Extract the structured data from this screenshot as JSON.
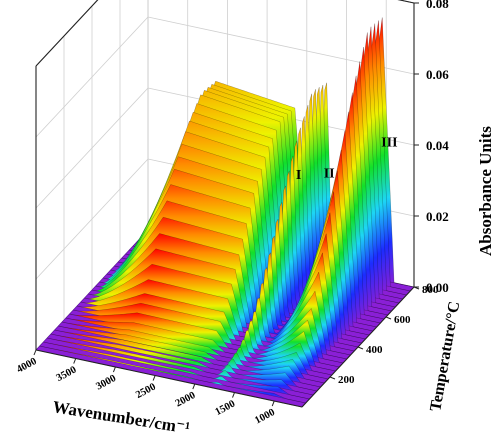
{
  "chart_data": {
    "type": "area",
    "style": "3d-waterfall-surface",
    "xlabel": "Wavenumber/cm⁻¹",
    "ylabel": "Temperature/°C",
    "zlabel": "Absorbance Units",
    "x_ticks": [
      "4000",
      "3500",
      "3000",
      "2500",
      "2000",
      "1500",
      "1000"
    ],
    "y_ticks": [
      "200",
      "400",
      "600",
      "800"
    ],
    "z_ticks": [
      "0.00",
      "0.02",
      "0.04",
      "0.06",
      "0.08"
    ],
    "xlim": [
      4000,
      650
    ],
    "ylim": [
      0,
      800
    ],
    "zlim": [
      0,
      0.08
    ],
    "grid": true,
    "colormap": [
      "#8a1fd6",
      "#1c2cff",
      "#1dd6f5",
      "#11e02a",
      "#eef200",
      "#ff8a00",
      "#ff0000"
    ],
    "peaks": [
      {
        "label": "I",
        "x_range": [
          3950,
          2000
        ],
        "center": 3200,
        "max_absorbance": 0.047
      },
      {
        "label": "II",
        "x_range": [
          1900,
          1650
        ],
        "center": 1760,
        "max_absorbance": 0.056
      },
      {
        "label": "III",
        "x_range": [
          1650,
          900
        ],
        "center": 1050,
        "max_absorbance": 0.075
      }
    ],
    "series": [
      {
        "temperature": 200,
        "values": [
          {
            "x": 3200,
            "y": 0.002
          },
          {
            "x": 1760,
            "y": 0.004
          },
          {
            "x": 1050,
            "y": 0.006
          }
        ]
      },
      {
        "temperature": 300,
        "values": [
          {
            "x": 3200,
            "y": 0.008
          },
          {
            "x": 1760,
            "y": 0.01
          },
          {
            "x": 1050,
            "y": 0.014
          }
        ]
      },
      {
        "temperature": 400,
        "values": [
          {
            "x": 3200,
            "y": 0.02
          },
          {
            "x": 1760,
            "y": 0.022
          },
          {
            "x": 1050,
            "y": 0.03
          }
        ]
      },
      {
        "temperature": 500,
        "values": [
          {
            "x": 3200,
            "y": 0.033
          },
          {
            "x": 1760,
            "y": 0.036
          },
          {
            "x": 1050,
            "y": 0.048
          }
        ]
      },
      {
        "temperature": 600,
        "values": [
          {
            "x": 3200,
            "y": 0.042
          },
          {
            "x": 1760,
            "y": 0.048
          },
          {
            "x": 1050,
            "y": 0.064
          }
        ]
      },
      {
        "temperature": 700,
        "values": [
          {
            "x": 3200,
            "y": 0.047
          },
          {
            "x": 1760,
            "y": 0.056
          },
          {
            "x": 1050,
            "y": 0.075
          }
        ]
      },
      {
        "temperature": 800,
        "values": [
          {
            "x": 3200,
            "y": 0.046
          },
          {
            "x": 1760,
            "y": 0.054
          },
          {
            "x": 1050,
            "y": 0.074
          }
        ]
      }
    ]
  }
}
